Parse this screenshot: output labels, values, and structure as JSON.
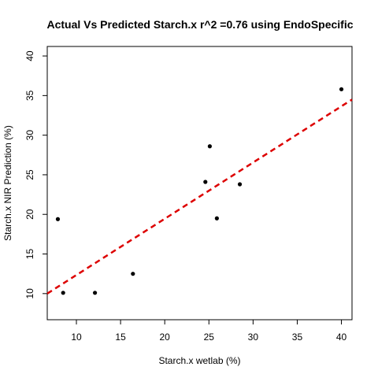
{
  "chart_data": {
    "type": "scatter",
    "title": "Actual Vs Predicted Starch.x r^2 =0.76 using EndoSpecific",
    "xlabel": "Starch.x wetlab (%)",
    "ylabel": "Starch.x NIR Prediction (%)",
    "xlim": [
      6.7,
      41.2
    ],
    "ylim": [
      6.7,
      41.2
    ],
    "xticks": [
      10,
      15,
      20,
      25,
      30,
      35,
      40
    ],
    "yticks": [
      10,
      15,
      20,
      25,
      30,
      35,
      40
    ],
    "grid": false,
    "points": [
      {
        "x": 7.9,
        "y": 19.4
      },
      {
        "x": 8.5,
        "y": 10.1
      },
      {
        "x": 12.1,
        "y": 10.1
      },
      {
        "x": 16.4,
        "y": 12.5
      },
      {
        "x": 24.6,
        "y": 24.1
      },
      {
        "x": 25.1,
        "y": 28.6
      },
      {
        "x": 25.9,
        "y": 19.5
      },
      {
        "x": 28.5,
        "y": 23.8
      },
      {
        "x": 40.0,
        "y": 35.8
      }
    ],
    "fit_line": {
      "style": "dashed",
      "color": "#dd0000",
      "x": [
        6.7,
        41.2
      ],
      "y": [
        10.0,
        34.5
      ]
    },
    "point_color": "#000000"
  }
}
